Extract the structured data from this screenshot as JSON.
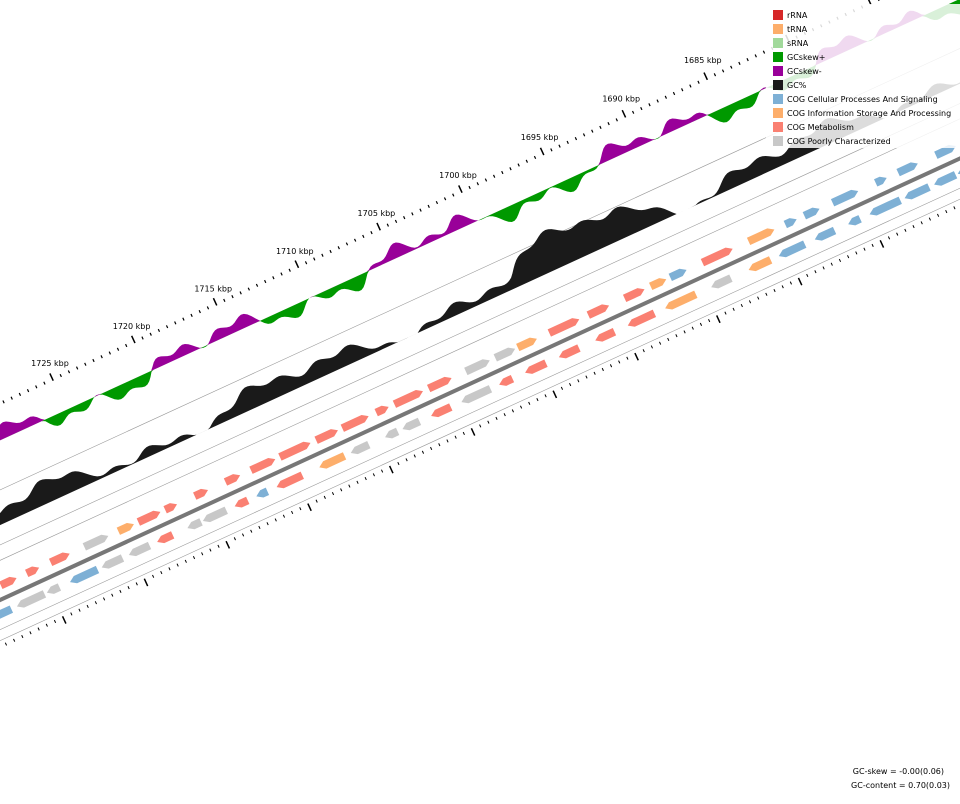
{
  "ruler": {
    "labels": [
      "1725 kbp",
      "1720 kbp",
      "1715 kbp",
      "1710 kbp",
      "1705 kbp",
      "1700 kbp",
      "1695 kbp",
      "1690 kbp",
      "1685 kbp"
    ]
  },
  "legend": [
    {
      "label": "rRNA",
      "color": "#d62728"
    },
    {
      "label": "tRNA",
      "color": "#fdae6b"
    },
    {
      "label": "sRNA",
      "color": "#a1d99b"
    },
    {
      "label": "GCskew+",
      "color": "#009900"
    },
    {
      "label": "GCskew-",
      "color": "#990099"
    },
    {
      "label": "GC%",
      "color": "#1a1a1a"
    },
    {
      "label": "COG Cellular Processes And Signaling",
      "color": "#7eb0d5"
    },
    {
      "label": "COG Information Storage And Processing",
      "color": "#fdae6b"
    },
    {
      "label": "COG Metabolism",
      "color": "#fa8072"
    },
    {
      "label": "COG Poorly Characterized",
      "color": "#c8c8c8"
    }
  ],
  "footer": [
    "GC-skew = -0.00(0.06)",
    "GC-content = 0.70(0.03)"
  ]
}
